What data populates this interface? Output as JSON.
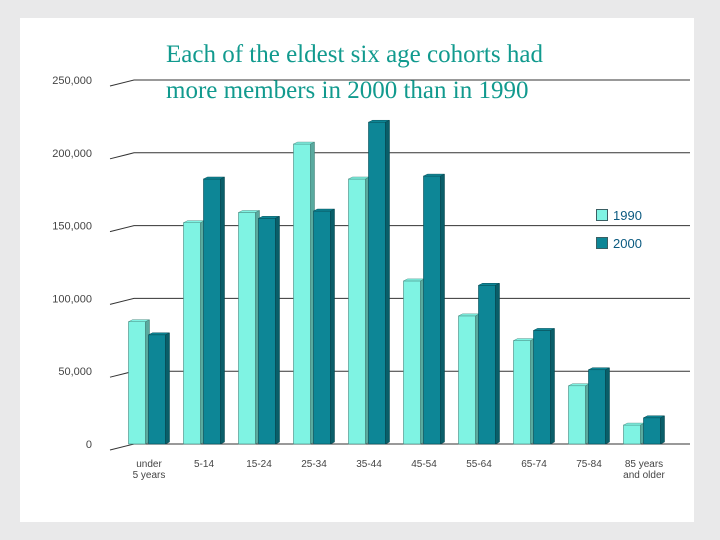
{
  "chart_data": {
    "type": "bar",
    "title_lines": [
      "Each of the eldest six age cohorts had",
      "more members in 2000 than in 1990"
    ],
    "categories": [
      "under 5 years",
      "5-14",
      "15-24",
      "25-34",
      "35-44",
      "45-54",
      "55-64",
      "65-74",
      "75-84",
      "85 years and older"
    ],
    "category_label_lines": [
      [
        "under",
        "5 years"
      ],
      [
        "5-14"
      ],
      [
        "15-24"
      ],
      [
        "25-34"
      ],
      [
        "35-44"
      ],
      [
        "45-54"
      ],
      [
        "55-64"
      ],
      [
        "65-74"
      ],
      [
        "75-84"
      ],
      [
        "85 years",
        "and older"
      ]
    ],
    "series": [
      {
        "name": "1990",
        "values": [
          84000,
          152000,
          159000,
          206000,
          182000,
          112000,
          88000,
          71000,
          40000,
          13000
        ]
      },
      {
        "name": "2000",
        "values": [
          75000,
          182000,
          155000,
          160000,
          221000,
          184000,
          109000,
          78000,
          51000,
          18000
        ]
      }
    ],
    "ylim": [
      0,
      250000
    ],
    "yticks": [
      0,
      50000,
      100000,
      150000,
      200000,
      250000
    ],
    "ytick_labels": [
      "0",
      "50,000",
      "100,000",
      "150,000",
      "200,000",
      "250,000"
    ],
    "grid": true,
    "legend_position": "right",
    "colors": {
      "1990": "#7ff3e3",
      "2000": "#0d8696",
      "title": "#119a8e",
      "grid": "#333333",
      "legend_text": "#0b5a80"
    }
  }
}
